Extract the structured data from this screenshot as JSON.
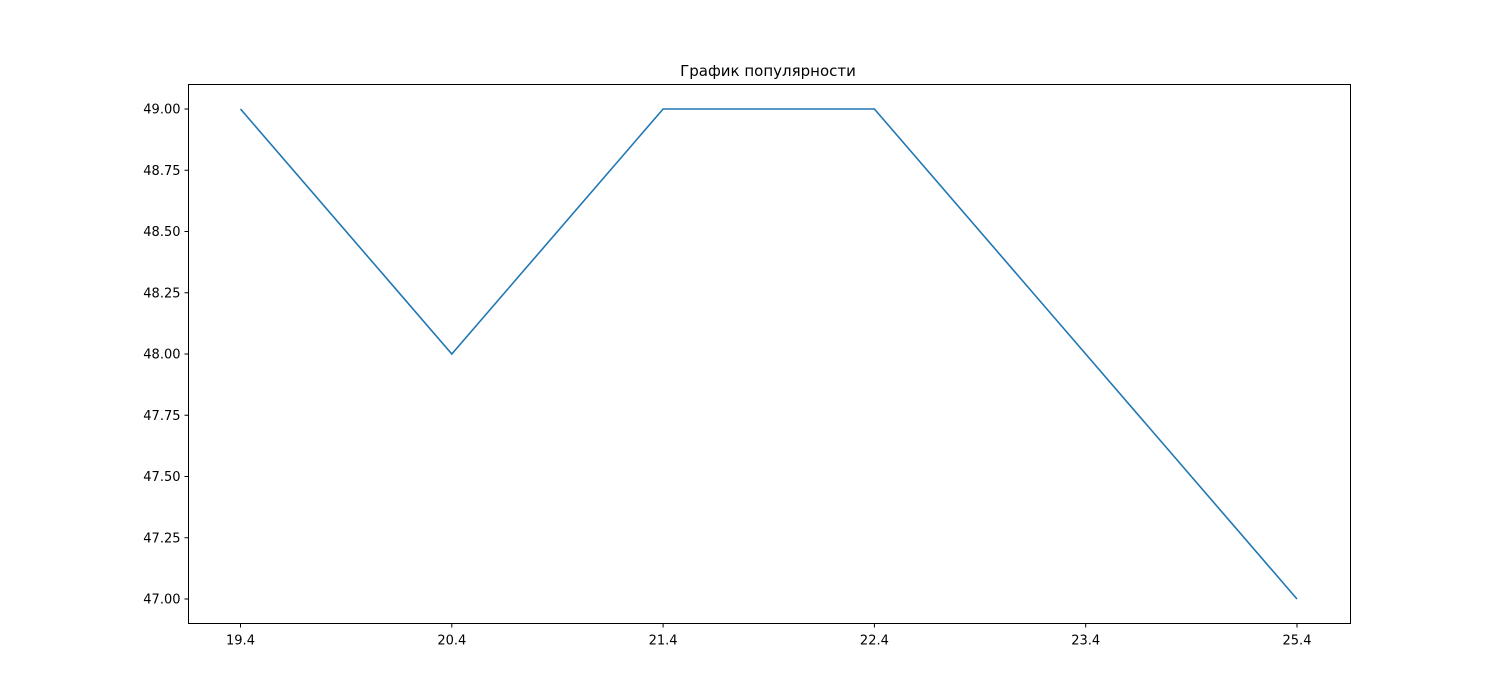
{
  "chart_data": {
    "type": "line",
    "title": "График популярности",
    "xlabel": "",
    "ylabel": "",
    "categories": [
      "19.4",
      "20.4",
      "21.4",
      "22.4",
      "23.4",
      "25.4"
    ],
    "series": [
      {
        "values": [
          49,
          48,
          49,
          49,
          48,
          47
        ],
        "color": "#1f77b4"
      }
    ],
    "ylim": [
      46.9,
      49.1
    ],
    "yticks": [
      47.0,
      47.25,
      47.5,
      47.75,
      48.0,
      48.25,
      48.5,
      48.75,
      49.0
    ],
    "ytick_labels": [
      "47.00",
      "47.25",
      "47.50",
      "47.75",
      "48.00",
      "48.25",
      "48.50",
      "48.75",
      "49.00"
    ],
    "grid": false,
    "legend": "none"
  }
}
